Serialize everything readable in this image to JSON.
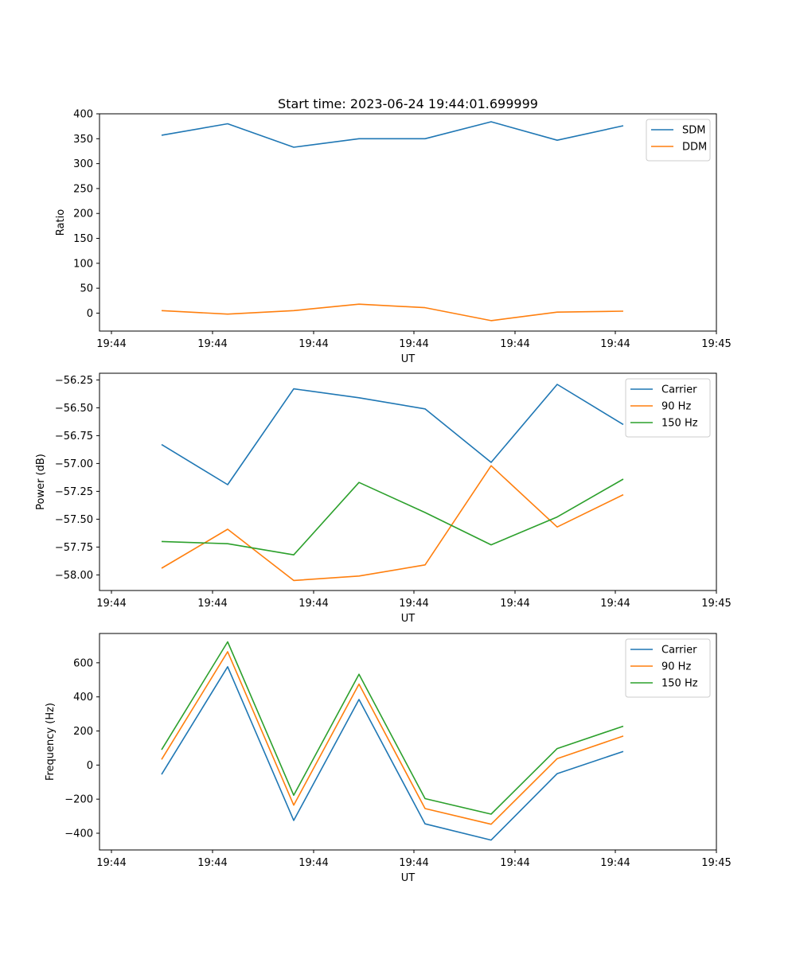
{
  "title": "Start time: 2023-06-24 19:44:01.699999",
  "chart_data": [
    {
      "type": "line",
      "xlabel": "UT",
      "ylabel": "Ratio",
      "x_tick_labels": [
        "19:44",
        "19:44",
        "19:44",
        "19:44",
        "19:44",
        "19:44",
        "19:45"
      ],
      "yticks": [
        0,
        50,
        100,
        150,
        200,
        250,
        300,
        350,
        400
      ],
      "ylim": [
        -36,
        400
      ],
      "legend": "top-right",
      "grid": false,
      "series": [
        {
          "name": "SDM",
          "color": "#1f77b4",
          "values": [
            357,
            380,
            333,
            350,
            350,
            384,
            347,
            376
          ]
        },
        {
          "name": "DDM",
          "color": "#ff7f0e",
          "values": [
            5,
            -2,
            5,
            18,
            11,
            -15,
            2,
            4
          ]
        }
      ]
    },
    {
      "type": "line",
      "xlabel": "UT",
      "ylabel": "Power (dB)",
      "x_tick_labels": [
        "19:44",
        "19:44",
        "19:44",
        "19:44",
        "19:44",
        "19:44",
        "19:45"
      ],
      "yticks": [
        -58.0,
        -57.75,
        -57.5,
        -57.25,
        -57.0,
        -56.75,
        -56.5,
        -56.25
      ],
      "ytick_labels": [
        "−58.00",
        "−57.75",
        "−57.50",
        "−57.25",
        "−57.00",
        "−56.75",
        "−56.50",
        "−56.25"
      ],
      "ylim": [
        -58.14,
        -56.19
      ],
      "legend": "top-right",
      "grid": false,
      "series": [
        {
          "name": "Carrier",
          "color": "#1f77b4",
          "values": [
            -56.83,
            -57.19,
            -56.33,
            -56.41,
            -56.51,
            -56.99,
            -56.29,
            -56.65
          ]
        },
        {
          "name": "90 Hz",
          "color": "#ff7f0e",
          "values": [
            -57.94,
            -57.59,
            -58.05,
            -58.01,
            -57.91,
            -57.02,
            -57.57,
            -57.28
          ]
        },
        {
          "name": "150 Hz",
          "color": "#2ca02c",
          "values": [
            -57.7,
            -57.72,
            -57.82,
            -57.17,
            -57.44,
            -57.73,
            -57.48,
            -57.14
          ]
        }
      ]
    },
    {
      "type": "line",
      "xlabel": "UT",
      "ylabel": "Frequency (Hz)",
      "x_tick_labels": [
        "19:44",
        "19:44",
        "19:44",
        "19:44",
        "19:44",
        "19:44",
        "19:45"
      ],
      "yticks": [
        -400,
        -200,
        0,
        200,
        400,
        600
      ],
      "ytick_labels": [
        "−400",
        "−200",
        "0",
        "200",
        "400",
        "600"
      ],
      "ylim": [
        -498,
        772
      ],
      "legend": "top-right",
      "grid": false,
      "series": [
        {
          "name": "Carrier",
          "color": "#1f77b4",
          "values": [
            -55,
            577,
            -325,
            385,
            -345,
            -440,
            -50,
            80
          ]
        },
        {
          "name": "90 Hz",
          "color": "#ff7f0e",
          "values": [
            33,
            665,
            -235,
            475,
            -255,
            -347,
            38,
            170
          ]
        },
        {
          "name": "150 Hz",
          "color": "#2ca02c",
          "values": [
            90,
            723,
            -177,
            533,
            -197,
            -288,
            97,
            228
          ]
        }
      ]
    }
  ]
}
